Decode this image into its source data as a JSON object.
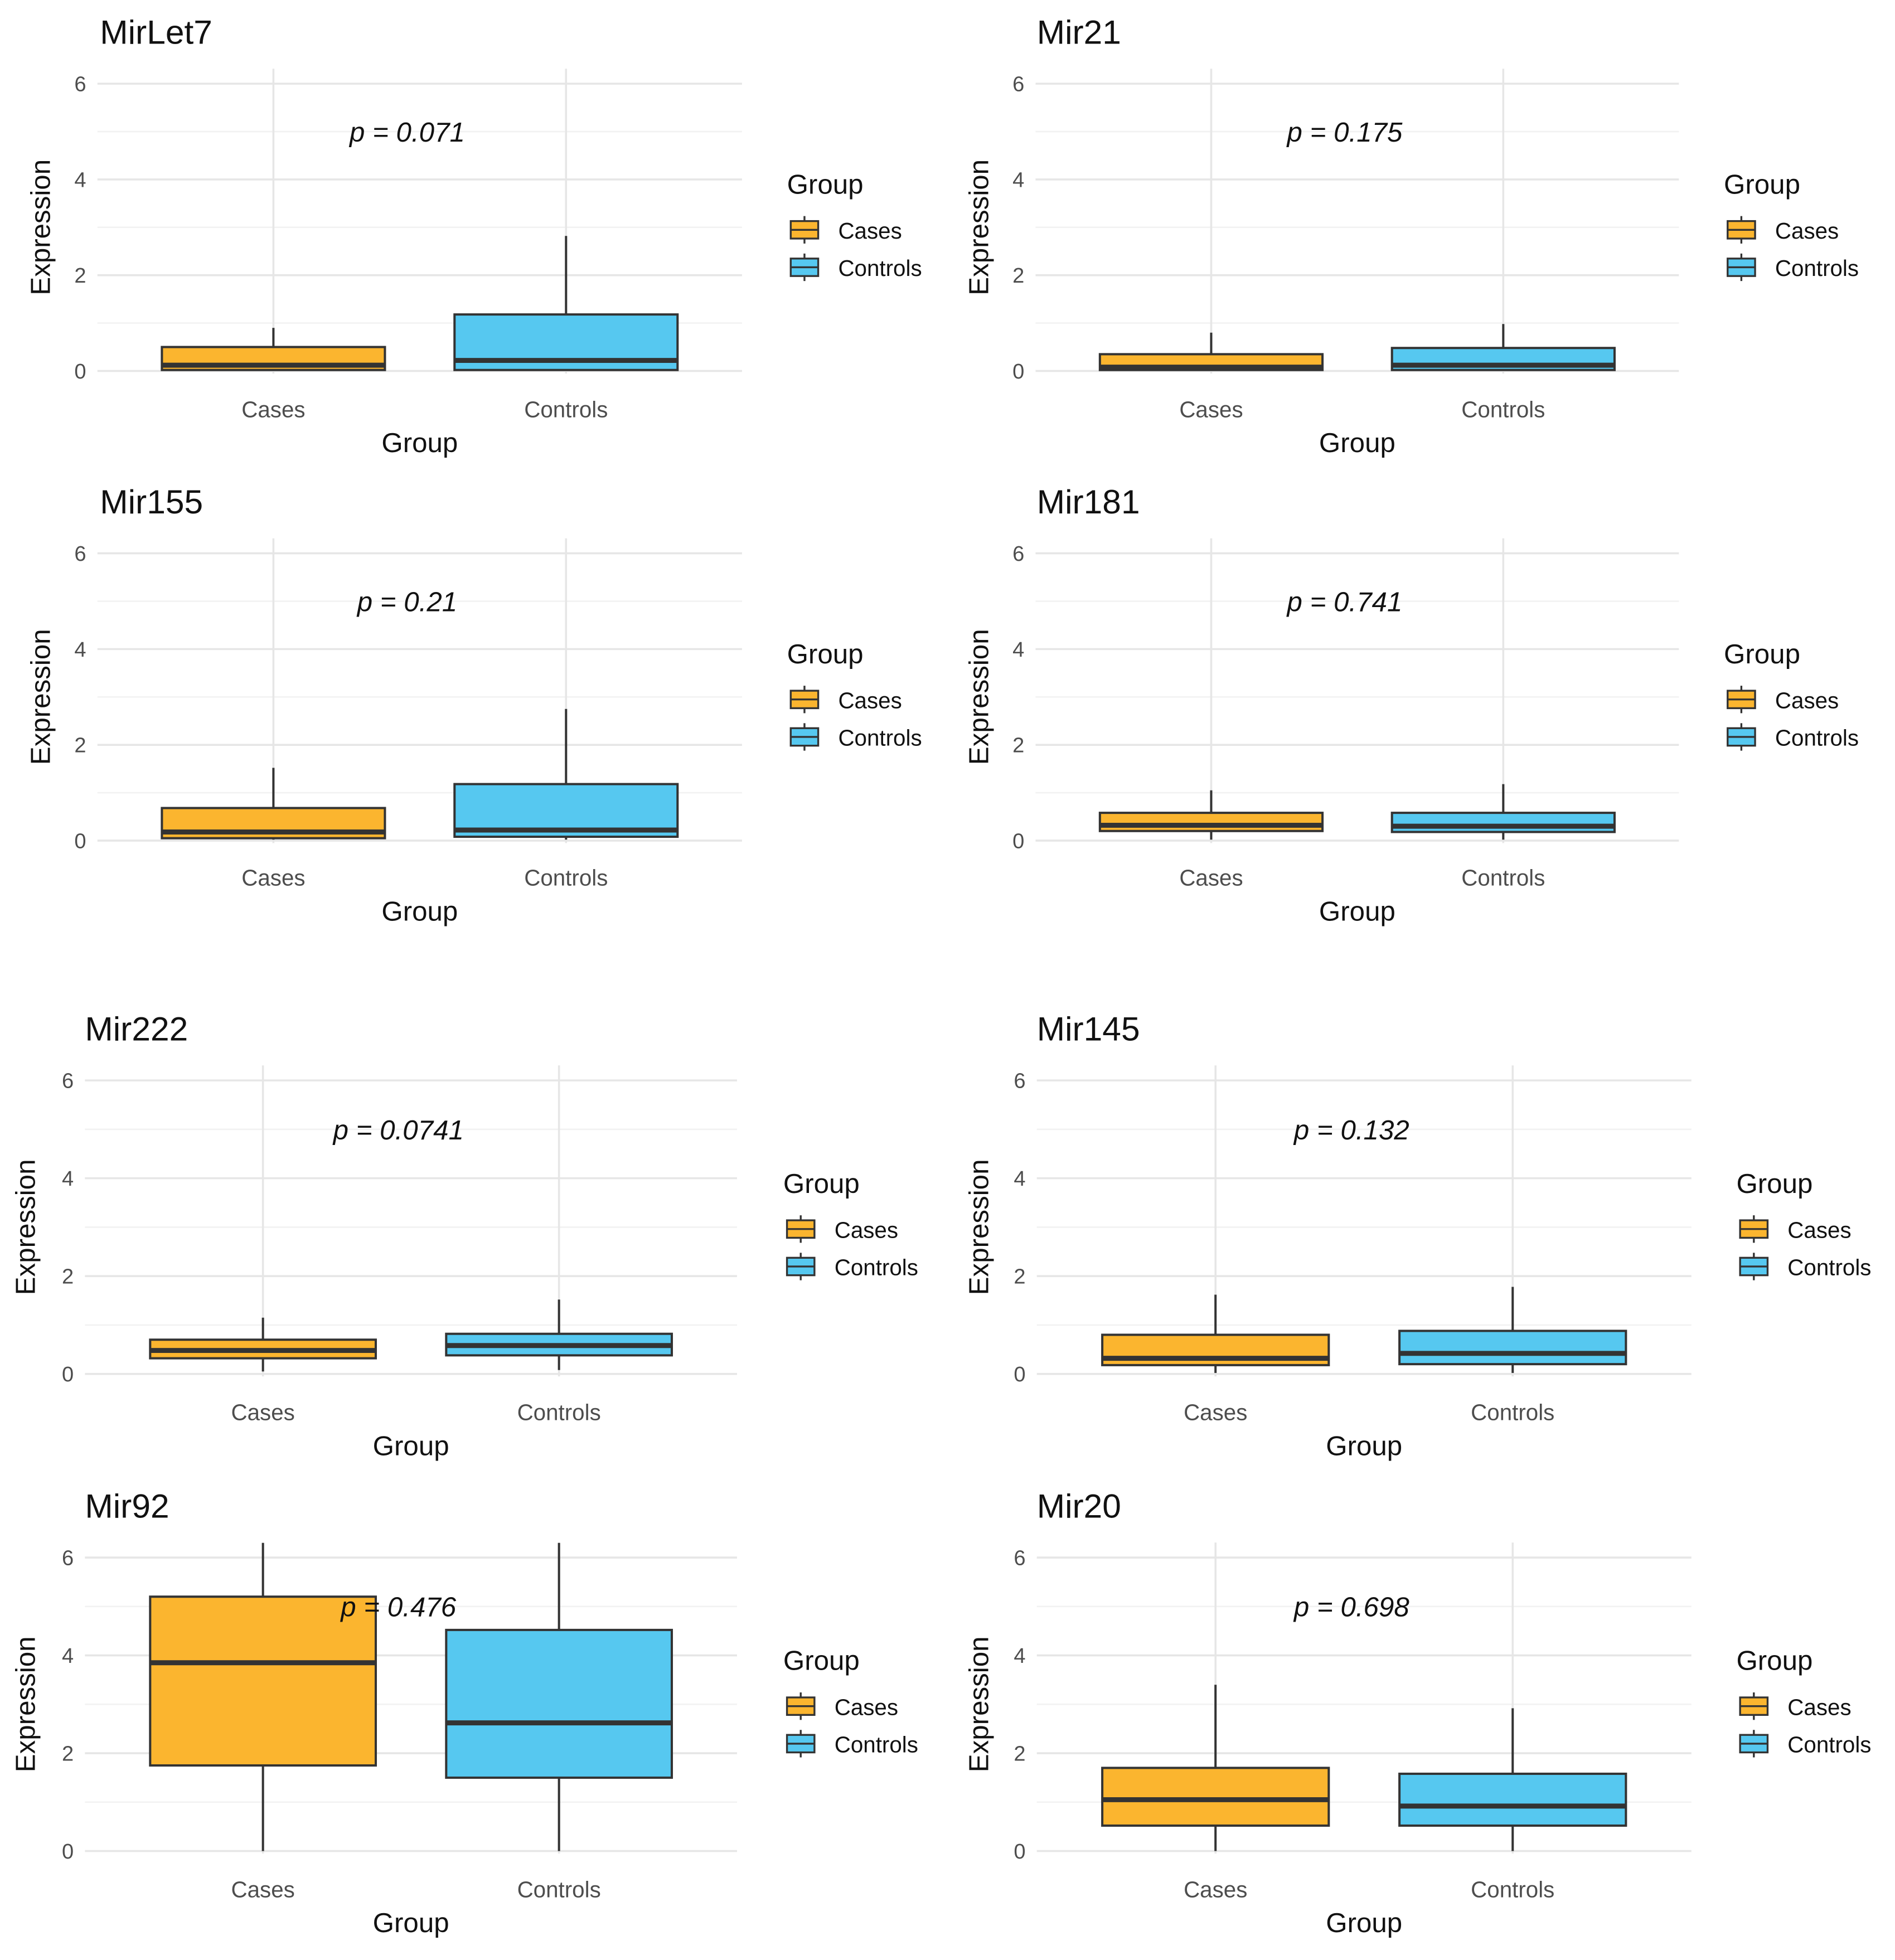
{
  "colors": {
    "cases": "#FBB52F",
    "controls": "#56C8F0",
    "outline": "#333333",
    "grid_major": "#E6E6E6",
    "grid_minor": "#F2F2F2",
    "text_dark": "#111111",
    "text_tick": "#4D4D4D"
  },
  "chart_data": [
    {
      "type": "boxplot",
      "title": "MirLet7",
      "xlabel": "Group",
      "ylabel": "Expression",
      "ylim": [
        0,
        6
      ],
      "y_ticks": [
        "0",
        "2",
        "4",
        "6"
      ],
      "categories": [
        "Cases",
        "Controls"
      ],
      "p_label": "p = 0.071",
      "legend": {
        "title": "Group",
        "items": [
          "Cases",
          "Controls"
        ]
      },
      "boxes": [
        {
          "group": "Cases",
          "whisker_low": 0.02,
          "q1": 0.02,
          "median": 0.12,
          "q3": 0.5,
          "whisker_high": 0.9
        },
        {
          "group": "Controls",
          "whisker_low": 0.02,
          "q1": 0.02,
          "median": 0.22,
          "q3": 1.18,
          "whisker_high": 2.82
        }
      ]
    },
    {
      "type": "boxplot",
      "title": "Mir21",
      "xlabel": "Group",
      "ylabel": "Expression",
      "ylim": [
        0,
        6
      ],
      "y_ticks": [
        "0",
        "2",
        "4",
        "6"
      ],
      "categories": [
        "Cases",
        "Controls"
      ],
      "p_label": "p = 0.175",
      "legend": {
        "title": "Group",
        "items": [
          "Cases",
          "Controls"
        ]
      },
      "boxes": [
        {
          "group": "Cases",
          "whisker_low": 0.02,
          "q1": 0.02,
          "median": 0.08,
          "q3": 0.35,
          "whisker_high": 0.8
        },
        {
          "group": "Controls",
          "whisker_low": 0.02,
          "q1": 0.02,
          "median": 0.12,
          "q3": 0.48,
          "whisker_high": 0.98
        }
      ]
    },
    {
      "type": "boxplot",
      "title": "Mir155",
      "xlabel": "Group",
      "ylabel": "Expression",
      "ylim": [
        0,
        6
      ],
      "y_ticks": [
        "0",
        "2",
        "4",
        "6"
      ],
      "categories": [
        "Cases",
        "Controls"
      ],
      "p_label": "p = 0.21",
      "legend": {
        "title": "Group",
        "items": [
          "Cases",
          "Controls"
        ]
      },
      "boxes": [
        {
          "group": "Cases",
          "whisker_low": 0.02,
          "q1": 0.05,
          "median": 0.18,
          "q3": 0.68,
          "whisker_high": 1.52
        },
        {
          "group": "Controls",
          "whisker_low": 0.02,
          "q1": 0.08,
          "median": 0.22,
          "q3": 1.18,
          "whisker_high": 2.75
        }
      ]
    },
    {
      "type": "boxplot",
      "title": "Mir181",
      "xlabel": "Group",
      "ylabel": "Expression",
      "ylim": [
        0,
        6
      ],
      "y_ticks": [
        "0",
        "2",
        "4",
        "6"
      ],
      "categories": [
        "Cases",
        "Controls"
      ],
      "p_label": "p = 0.741",
      "legend": {
        "title": "Group",
        "items": [
          "Cases",
          "Controls"
        ]
      },
      "boxes": [
        {
          "group": "Cases",
          "whisker_low": 0.02,
          "q1": 0.2,
          "median": 0.32,
          "q3": 0.58,
          "whisker_high": 1.05
        },
        {
          "group": "Controls",
          "whisker_low": 0.02,
          "q1": 0.18,
          "median": 0.3,
          "q3": 0.58,
          "whisker_high": 1.18
        }
      ]
    },
    {
      "type": "boxplot",
      "title": "Mir222",
      "xlabel": "Group",
      "ylabel": "Expression",
      "ylim": [
        0,
        6
      ],
      "y_ticks": [
        "0",
        "2",
        "4",
        "6"
      ],
      "categories": [
        "Cases",
        "Controls"
      ],
      "p_label": "p = 0.0741",
      "legend": {
        "title": "Group",
        "items": [
          "Cases",
          "Controls"
        ]
      },
      "boxes": [
        {
          "group": "Cases",
          "whisker_low": 0.05,
          "q1": 0.32,
          "median": 0.48,
          "q3": 0.7,
          "whisker_high": 1.15
        },
        {
          "group": "Controls",
          "whisker_low": 0.08,
          "q1": 0.38,
          "median": 0.58,
          "q3": 0.82,
          "whisker_high": 1.52
        }
      ]
    },
    {
      "type": "boxplot",
      "title": "Mir145",
      "xlabel": "Group",
      "ylabel": "Expression",
      "ylim": [
        0,
        6
      ],
      "y_ticks": [
        "0",
        "2",
        "4",
        "6"
      ],
      "categories": [
        "Cases",
        "Controls"
      ],
      "p_label": "p = 0.132",
      "legend": {
        "title": "Group",
        "items": [
          "Cases",
          "Controls"
        ]
      },
      "boxes": [
        {
          "group": "Cases",
          "whisker_low": 0.02,
          "q1": 0.18,
          "median": 0.32,
          "q3": 0.8,
          "whisker_high": 1.62
        },
        {
          "group": "Controls",
          "whisker_low": 0.02,
          "q1": 0.2,
          "median": 0.42,
          "q3": 0.88,
          "whisker_high": 1.78
        }
      ]
    },
    {
      "type": "boxplot",
      "title": "Mir92",
      "xlabel": "Group",
      "ylabel": "Expression",
      "ylim": [
        0,
        6
      ],
      "y_ticks": [
        "0",
        "2",
        "4",
        "6"
      ],
      "categories": [
        "Cases",
        "Controls"
      ],
      "p_label": "p = 0.476",
      "legend": {
        "title": "Group",
        "items": [
          "Cases",
          "Controls"
        ]
      },
      "boxes": [
        {
          "group": "Cases",
          "whisker_low": 0.0,
          "q1": 1.75,
          "median": 3.85,
          "q3": 5.2,
          "whisker_high": 6.3
        },
        {
          "group": "Controls",
          "whisker_low": 0.0,
          "q1": 1.5,
          "median": 2.62,
          "q3": 4.52,
          "whisker_high": 6.3
        }
      ]
    },
    {
      "type": "boxplot",
      "title": "Mir20",
      "xlabel": "Group",
      "ylabel": "Expression",
      "ylim": [
        0,
        6
      ],
      "y_ticks": [
        "0",
        "2",
        "4",
        "6"
      ],
      "categories": [
        "Cases",
        "Controls"
      ],
      "p_label": "p = 0.698",
      "legend": {
        "title": "Group",
        "items": [
          "Cases",
          "Controls"
        ]
      },
      "boxes": [
        {
          "group": "Cases",
          "whisker_low": 0.0,
          "q1": 0.52,
          "median": 1.05,
          "q3": 1.7,
          "whisker_high": 3.4
        },
        {
          "group": "Controls",
          "whisker_low": 0.0,
          "q1": 0.52,
          "median": 0.92,
          "q3": 1.58,
          "whisker_high": 2.92
        }
      ]
    }
  ]
}
